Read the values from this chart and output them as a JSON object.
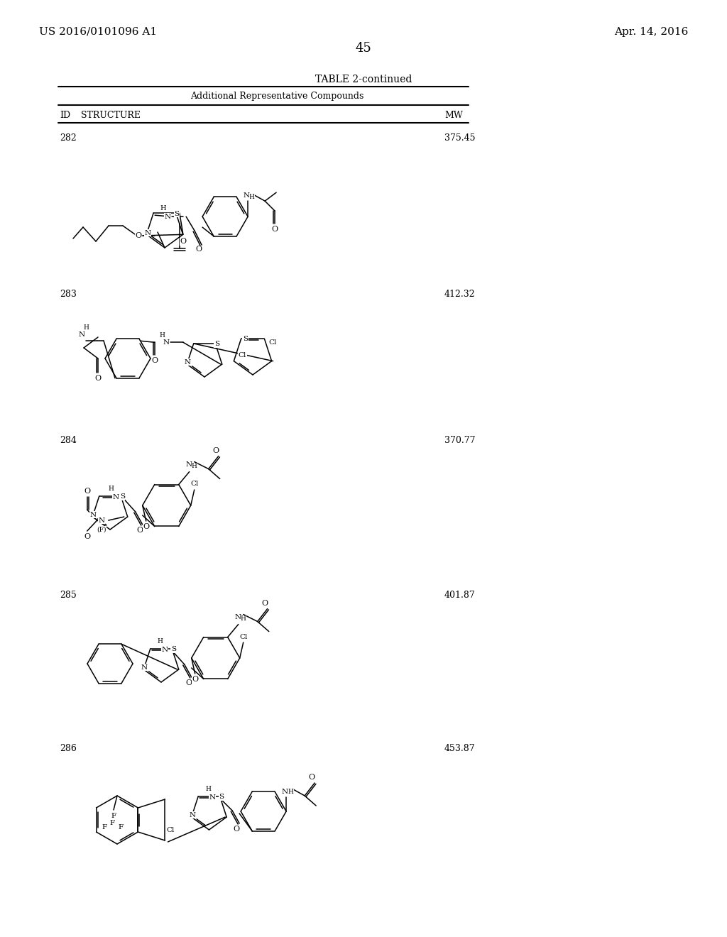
{
  "background": "#ffffff",
  "header_left": "US 2016/0101096 A1",
  "header_right": "Apr. 14, 2016",
  "page_number": "45",
  "table_title": "TABLE 2-continued",
  "table_subtitle": "Additional Representative Compounds",
  "ids": [
    "282",
    "283",
    "284",
    "285",
    "286"
  ],
  "mws": [
    "375.45",
    "412.32",
    "370.77",
    "401.87",
    "453.87"
  ],
  "text_color": "#000000"
}
